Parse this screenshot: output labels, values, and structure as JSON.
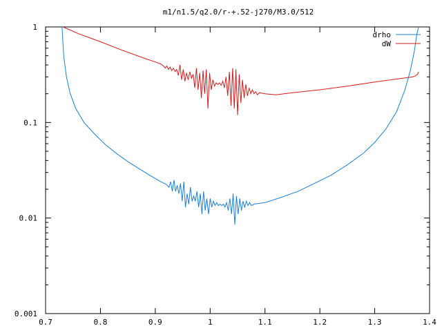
{
  "chart_data": {
    "type": "line",
    "title": "m1/n1.5/q2.0/r-+.52-j270/M3.0/512",
    "xlabel": "",
    "ylabel": "",
    "xlim": [
      0.7,
      1.4
    ],
    "ylim": [
      0.001,
      1
    ],
    "yscale": "log",
    "grid": false,
    "legend_position": "top-right",
    "x_ticks": [
      0.7,
      0.8,
      0.9,
      1.0,
      1.1,
      1.2,
      1.3,
      1.4
    ],
    "x_tick_labels": [
      "0.7",
      "0.8",
      "0.9",
      "1",
      "1.1",
      "1.2",
      "1.3",
      "1.4"
    ],
    "y_ticks": [
      0.001,
      0.01,
      0.1,
      1
    ],
    "y_tick_labels": [
      "0.001",
      "0.01",
      "0.1",
      "1"
    ],
    "series": [
      {
        "name": "drho",
        "color": "#1a7fd6",
        "points": [
          [
            0.73,
            1.0
          ],
          [
            0.733,
            0.5
          ],
          [
            0.738,
            0.3
          ],
          [
            0.745,
            0.2
          ],
          [
            0.755,
            0.14
          ],
          [
            0.77,
            0.1
          ],
          [
            0.79,
            0.075
          ],
          [
            0.81,
            0.058
          ],
          [
            0.83,
            0.047
          ],
          [
            0.85,
            0.039
          ],
          [
            0.87,
            0.033
          ],
          [
            0.89,
            0.028
          ],
          [
            0.91,
            0.024
          ],
          [
            0.92,
            0.0225
          ],
          [
            0.925,
            0.021
          ],
          [
            0.928,
            0.024
          ],
          [
            0.931,
            0.019
          ],
          [
            0.934,
            0.025
          ],
          [
            0.937,
            0.019
          ],
          [
            0.94,
            0.022
          ],
          [
            0.943,
            0.018
          ],
          [
            0.946,
            0.023
          ],
          [
            0.949,
            0.015
          ],
          [
            0.952,
            0.024
          ],
          [
            0.955,
            0.013
          ],
          [
            0.958,
            0.018
          ],
          [
            0.961,
            0.014
          ],
          [
            0.964,
            0.021
          ],
          [
            0.967,
            0.015
          ],
          [
            0.97,
            0.017
          ],
          [
            0.973,
            0.015
          ],
          [
            0.976,
            0.019
          ],
          [
            0.979,
            0.013
          ],
          [
            0.982,
            0.018
          ],
          [
            0.985,
            0.011
          ],
          [
            0.988,
            0.019
          ],
          [
            0.991,
            0.012
          ],
          [
            0.994,
            0.016
          ],
          [
            0.997,
            0.011
          ],
          [
            1.0,
            0.016
          ],
          [
            1.003,
            0.013
          ],
          [
            1.006,
            0.015
          ],
          [
            1.009,
            0.0135
          ],
          [
            1.012,
            0.0145
          ],
          [
            1.015,
            0.0135
          ],
          [
            1.018,
            0.014
          ],
          [
            1.021,
            0.0135
          ],
          [
            1.024,
            0.014
          ],
          [
            1.027,
            0.013
          ],
          [
            1.03,
            0.0145
          ],
          [
            1.033,
            0.012
          ],
          [
            1.036,
            0.016
          ],
          [
            1.039,
            0.011
          ],
          [
            1.042,
            0.018
          ],
          [
            1.045,
            0.0085
          ],
          [
            1.048,
            0.017
          ],
          [
            1.051,
            0.011
          ],
          [
            1.054,
            0.016
          ],
          [
            1.057,
            0.012
          ],
          [
            1.06,
            0.015
          ],
          [
            1.063,
            0.013
          ],
          [
            1.066,
            0.015
          ],
          [
            1.069,
            0.0135
          ],
          [
            1.072,
            0.0145
          ],
          [
            1.075,
            0.0135
          ],
          [
            1.08,
            0.014
          ],
          [
            1.1,
            0.0145
          ],
          [
            1.13,
            0.0165
          ],
          [
            1.16,
            0.019
          ],
          [
            1.19,
            0.023
          ],
          [
            1.22,
            0.028
          ],
          [
            1.25,
            0.036
          ],
          [
            1.28,
            0.048
          ],
          [
            1.3,
            0.062
          ],
          [
            1.32,
            0.085
          ],
          [
            1.34,
            0.13
          ],
          [
            1.355,
            0.22
          ],
          [
            1.365,
            0.35
          ],
          [
            1.372,
            0.55
          ],
          [
            1.377,
            0.85
          ],
          [
            1.38,
            1.0
          ]
        ]
      },
      {
        "name": "dW",
        "color": "#d11b1b",
        "points": [
          [
            0.732,
            1.0
          ],
          [
            0.76,
            0.85
          ],
          [
            0.8,
            0.7
          ],
          [
            0.84,
            0.57
          ],
          [
            0.88,
            0.47
          ],
          [
            0.9,
            0.43
          ],
          [
            0.91,
            0.41
          ],
          [
            0.915,
            0.39
          ],
          [
            0.918,
            0.37
          ],
          [
            0.921,
            0.39
          ],
          [
            0.924,
            0.36
          ],
          [
            0.927,
            0.38
          ],
          [
            0.93,
            0.35
          ],
          [
            0.933,
            0.37
          ],
          [
            0.936,
            0.34
          ],
          [
            0.939,
            0.36
          ],
          [
            0.942,
            0.31
          ],
          [
            0.945,
            0.4
          ],
          [
            0.948,
            0.28
          ],
          [
            0.951,
            0.36
          ],
          [
            0.954,
            0.27
          ],
          [
            0.957,
            0.33
          ],
          [
            0.96,
            0.28
          ],
          [
            0.963,
            0.34
          ],
          [
            0.966,
            0.29
          ],
          [
            0.969,
            0.32
          ],
          [
            0.972,
            0.23
          ],
          [
            0.975,
            0.37
          ],
          [
            0.978,
            0.22
          ],
          [
            0.981,
            0.33
          ],
          [
            0.984,
            0.18
          ],
          [
            0.987,
            0.35
          ],
          [
            0.99,
            0.2
          ],
          [
            0.993,
            0.36
          ],
          [
            0.996,
            0.14
          ],
          [
            0.999,
            0.33
          ],
          [
            1.002,
            0.22
          ],
          [
            1.005,
            0.28
          ],
          [
            1.008,
            0.24
          ],
          [
            1.011,
            0.26
          ],
          [
            1.014,
            0.25
          ],
          [
            1.017,
            0.26
          ],
          [
            1.02,
            0.245
          ],
          [
            1.023,
            0.27
          ],
          [
            1.026,
            0.23
          ],
          [
            1.029,
            0.3
          ],
          [
            1.032,
            0.19
          ],
          [
            1.035,
            0.34
          ],
          [
            1.038,
            0.15
          ],
          [
            1.041,
            0.37
          ],
          [
            1.044,
            0.14
          ],
          [
            1.047,
            0.36
          ],
          [
            1.05,
            0.12
          ],
          [
            1.053,
            0.32
          ],
          [
            1.056,
            0.16
          ],
          [
            1.059,
            0.28
          ],
          [
            1.062,
            0.18
          ],
          [
            1.065,
            0.25
          ],
          [
            1.068,
            0.19
          ],
          [
            1.071,
            0.23
          ],
          [
            1.074,
            0.2
          ],
          [
            1.077,
            0.22
          ],
          [
            1.08,
            0.2
          ],
          [
            1.083,
            0.21
          ],
          [
            1.086,
            0.195
          ],
          [
            1.09,
            0.205
          ],
          [
            1.1,
            0.2
          ],
          [
            1.12,
            0.195
          ],
          [
            1.15,
            0.205
          ],
          [
            1.2,
            0.22
          ],
          [
            1.25,
            0.24
          ],
          [
            1.3,
            0.265
          ],
          [
            1.35,
            0.29
          ],
          [
            1.37,
            0.3
          ],
          [
            1.375,
            0.31
          ],
          [
            1.378,
            0.32
          ],
          [
            1.38,
            0.34
          ]
        ]
      }
    ]
  }
}
